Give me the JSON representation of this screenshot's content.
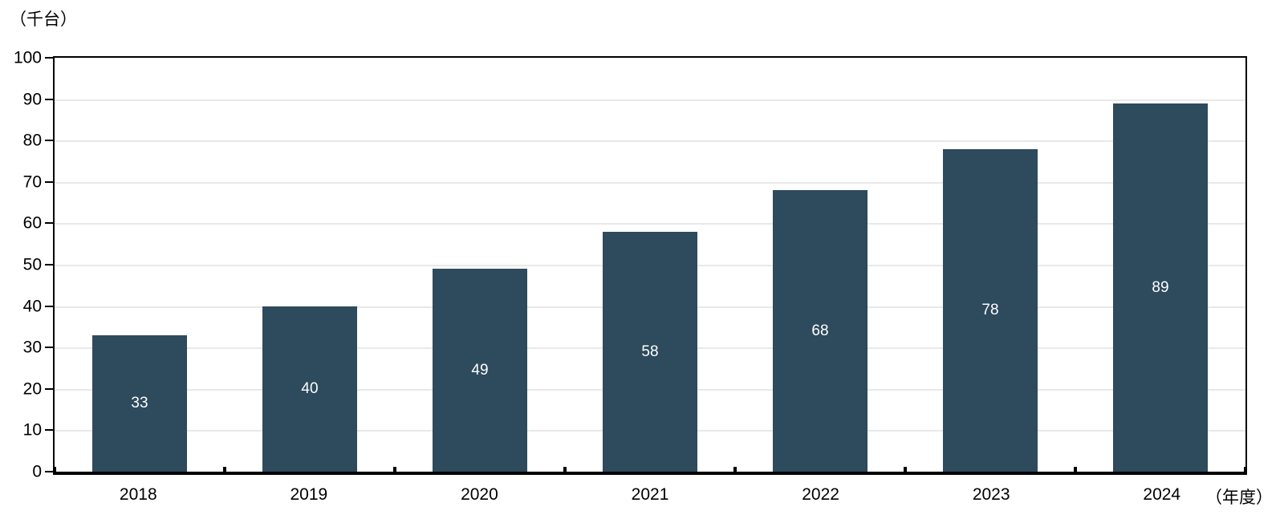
{
  "chart_data": {
    "type": "bar",
    "title": "",
    "y_unit_label": "（千台）",
    "x_unit_label": "（年度）",
    "categories": [
      "2018",
      "2019",
      "2020",
      "2021",
      "2022",
      "2023",
      "2024"
    ],
    "values": [
      33,
      40,
      49,
      58,
      68,
      78,
      89
    ],
    "ylim": [
      0,
      100
    ],
    "yticks": [
      0,
      10,
      20,
      30,
      40,
      50,
      60,
      70,
      80,
      90,
      100
    ],
    "grid": true,
    "legend": "none",
    "bar_color": "#2E4A5D",
    "value_label_color": "#FFFFFF",
    "gridline_color": "#E8E8E8",
    "axis_color": "#000000",
    "background_color": "#FFFFFF"
  }
}
